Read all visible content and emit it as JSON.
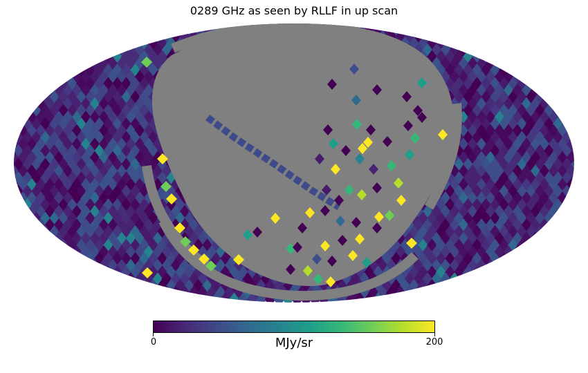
{
  "title": "0289 GHz as seen by RLLF in up scan",
  "colorbar": {
    "min_label": "0",
    "max_label": "200",
    "unit": "MJy/sr",
    "colormap": "viridis",
    "range": [
      0,
      200
    ]
  },
  "map": {
    "projection": "mollweide",
    "masked_color": "#808080",
    "background_colormap_stops": [
      "#440154",
      "#482878",
      "#3e4989",
      "#31688e",
      "#26828e",
      "#1f9e89",
      "#35b779",
      "#6ece58",
      "#b5de2b",
      "#fde725"
    ]
  }
}
